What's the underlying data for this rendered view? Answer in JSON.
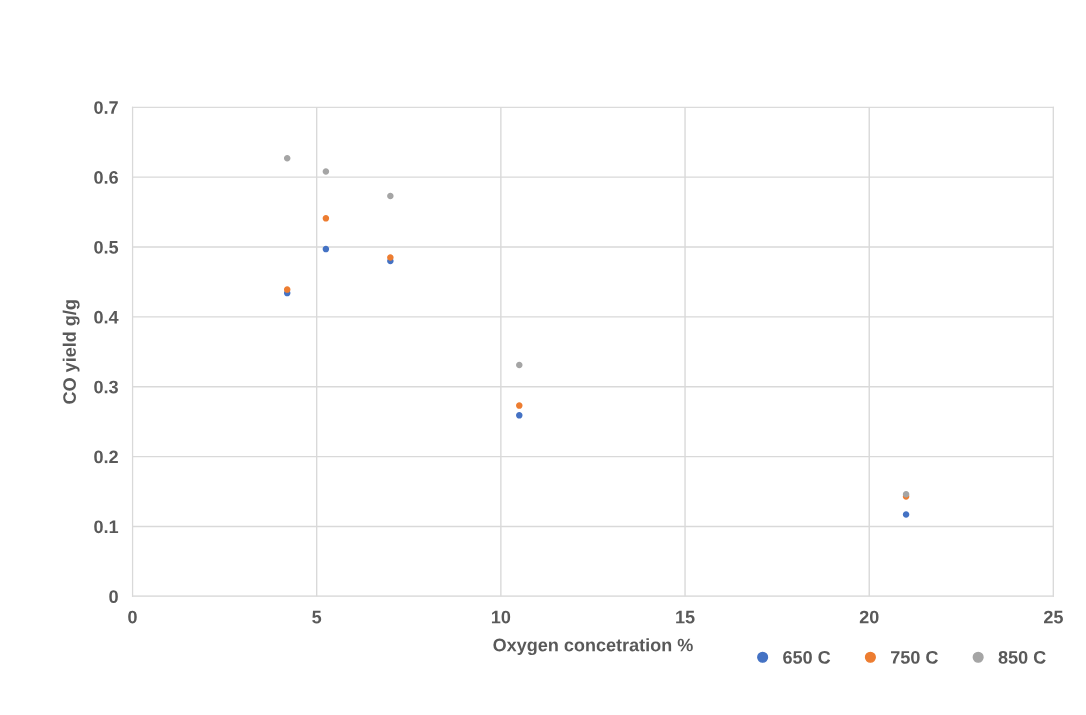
{
  "chart_data": {
    "type": "scatter",
    "xlabel": "Oxygen concetration %",
    "ylabel": "CO yield g/g",
    "x": [
      4.2,
      5.25,
      7,
      10.5,
      21
    ],
    "series": [
      {
        "name": "650 C",
        "color": "#4472c4",
        "values": [
          0.434,
          0.497,
          0.48,
          0.259,
          0.117
        ]
      },
      {
        "name": "750 C",
        "color": "#ed7d31",
        "values": [
          0.439,
          0.541,
          0.485,
          0.273,
          0.143
        ]
      },
      {
        "name": "850 C",
        "color": "#a5a5a5",
        "values": [
          0.627,
          0.608,
          0.573,
          0.331,
          0.146
        ]
      }
    ],
    "xlim": [
      0,
      25
    ],
    "xticks": [
      0,
      5,
      10,
      15,
      20,
      25
    ],
    "ylim": [
      0,
      0.7
    ],
    "yticks": [
      0,
      0.1,
      0.2,
      0.3,
      0.4,
      0.5,
      0.6,
      0.7
    ],
    "grid": true,
    "legend": "bottom right",
    "marker": "circle"
  }
}
